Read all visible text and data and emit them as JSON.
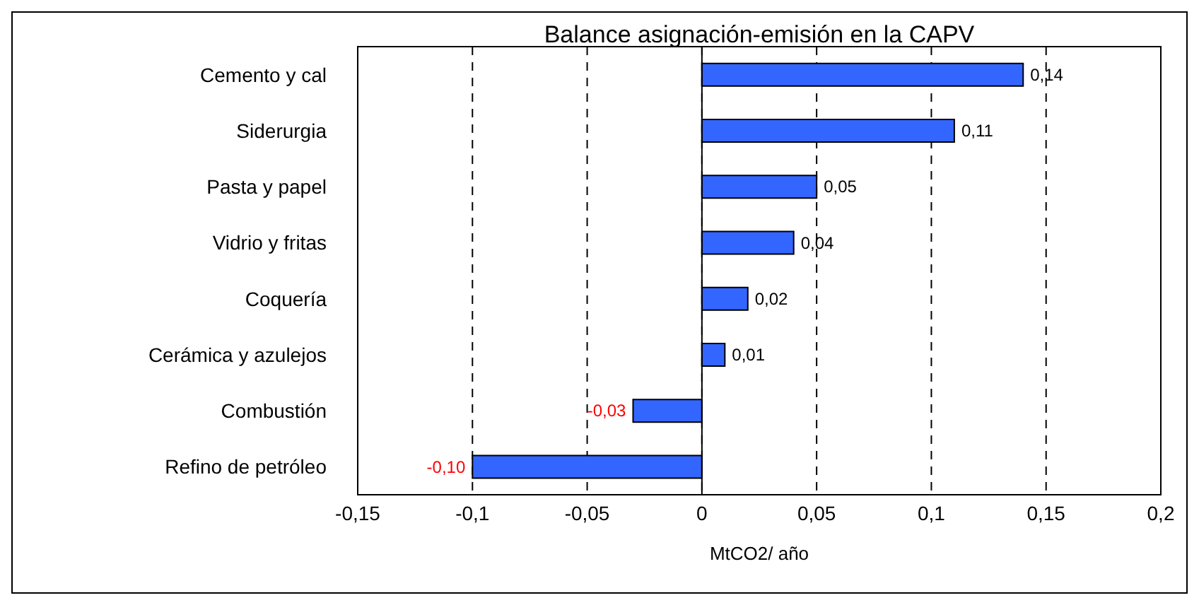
{
  "chart_data": {
    "type": "bar",
    "orientation": "horizontal",
    "title": "Balance asignación-emisión en la CAPV",
    "xlabel": "MtCO2/ año",
    "categories": [
      "Cemento y cal",
      "Siderurgia",
      "Pasta y papel",
      "Vidrio y fritas",
      "Coquería",
      "Cerámica y azulejos",
      "Combustión",
      "Refino de petróleo"
    ],
    "values": [
      0.14,
      0.11,
      0.05,
      0.04,
      0.02,
      0.01,
      -0.03,
      -0.1
    ],
    "value_labels": [
      "0,14",
      "0,11",
      "0,05",
      "0,04",
      "0,02",
      "0,01",
      "-0,03",
      "-0,10"
    ],
    "color": "#3366ff",
    "xlim": [
      -0.15,
      0.2
    ],
    "xticks": [
      {
        "value": -0.15,
        "label": "-0,15"
      },
      {
        "value": -0.1,
        "label": "-0,1"
      },
      {
        "value": -0.05,
        "label": "-0,05"
      },
      {
        "value": 0,
        "label": "0"
      },
      {
        "value": 0.05,
        "label": "0,05"
      },
      {
        "value": 0.1,
        "label": "0,1"
      },
      {
        "value": 0.15,
        "label": "0,15"
      },
      {
        "value": 0.2,
        "label": "0,2"
      }
    ],
    "grid": "x",
    "legend": false
  }
}
